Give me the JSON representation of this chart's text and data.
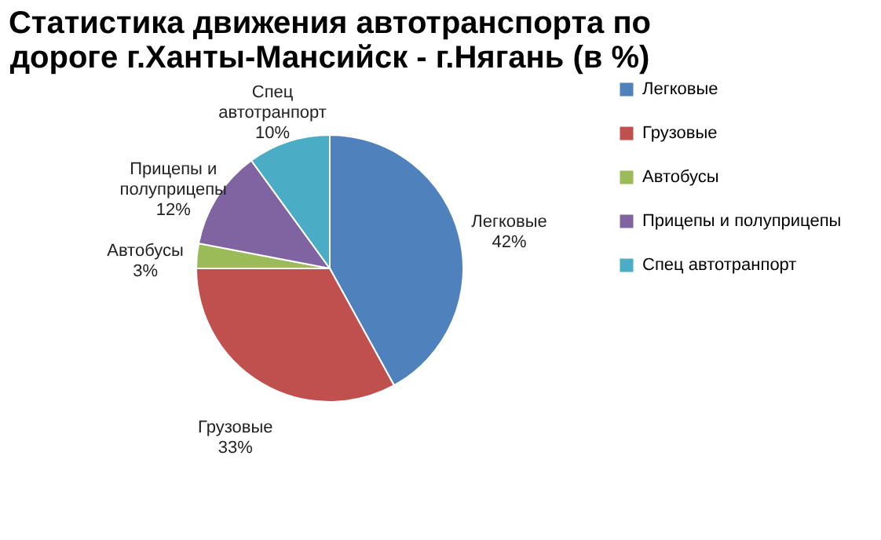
{
  "chart_data": {
    "type": "pie",
    "title": "Статистика движения автотранспорта по дороге г.Ханты-Мансийск - г.Нягань (в %)",
    "categories": [
      "Легковые",
      "Грузовые",
      "Автобусы",
      "Прицепы и полуприцепы",
      "Спец автотранпорт"
    ],
    "values": [
      42,
      33,
      3,
      12,
      10
    ],
    "value_labels": [
      "42%",
      "33%",
      "3%",
      "12%",
      "10%"
    ],
    "colors": [
      "#4f81bd",
      "#c0504d",
      "#9bbb59",
      "#8064a2",
      "#4bacc6"
    ],
    "legend": "right"
  }
}
